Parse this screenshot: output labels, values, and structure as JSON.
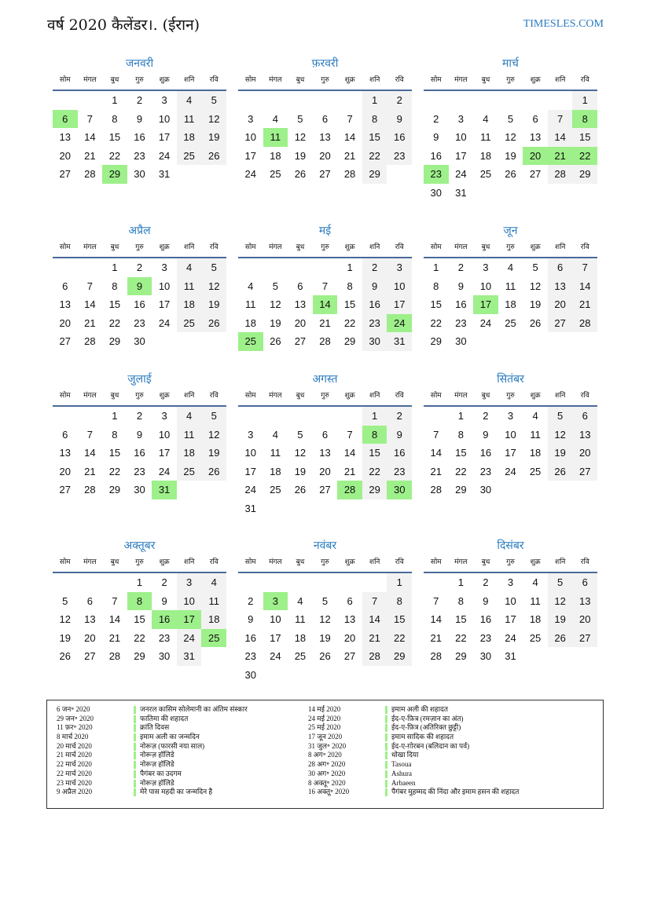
{
  "title": "वर्ष 2020 कैलेंडर।. (ईरान)",
  "site": "TIMESLES.COM",
  "year": 2020,
  "colors": {
    "accent": "#2a7bc0",
    "holiday": "#9ef08a",
    "weekend": "#f2f2f2"
  },
  "weekdays": [
    "सोम",
    "मंगल",
    "बुध",
    "गुरु",
    "शुक्र",
    "शनि",
    "रवि"
  ],
  "months": [
    {
      "name": "जनवरी",
      "highlights": [
        6,
        29
      ]
    },
    {
      "name": "फ़रवरी",
      "highlights": [
        11
      ]
    },
    {
      "name": "मार्च",
      "highlights": [
        8,
        20,
        21,
        22,
        23
      ]
    },
    {
      "name": "अप्रैल",
      "highlights": [
        9
      ]
    },
    {
      "name": "मई",
      "highlights": [
        14,
        24,
        25
      ]
    },
    {
      "name": "जून",
      "highlights": [
        17
      ]
    },
    {
      "name": "जुलाई",
      "highlights": [
        31
      ]
    },
    {
      "name": "अगस्त",
      "highlights": [
        8,
        28,
        30
      ]
    },
    {
      "name": "सितंबर",
      "highlights": []
    },
    {
      "name": "अक्तूबर",
      "highlights": [
        8,
        16,
        17,
        25
      ]
    },
    {
      "name": "नवंबर",
      "highlights": [
        3
      ]
    },
    {
      "name": "दिसंबर",
      "highlights": []
    }
  ],
  "holidays_left": [
    {
      "date": "6 जन॰ 2020",
      "name": "जनरल कासिम सोलेमानी का अंतिम संस्कार"
    },
    {
      "date": "29 जन॰ 2020",
      "name": "फातिमा की शहादत"
    },
    {
      "date": "11 फ़र॰ 2020",
      "name": "क्रांति दिवस"
    },
    {
      "date": "8 मार्च 2020",
      "name": "इमाम अली का जन्मदिन"
    },
    {
      "date": "20 मार्च 2020",
      "name": "नोरूज़ (फारसी नया साल)"
    },
    {
      "date": "21 मार्च 2020",
      "name": "नोरूज़ हॉलिडे"
    },
    {
      "date": "22 मार्च 2020",
      "name": "नोरूज़ हॉलिडे"
    },
    {
      "date": "22 मार्च 2020",
      "name": "पैगंबर का उदगम"
    },
    {
      "date": "23 मार्च 2020",
      "name": "नोरूज़ हॉलिडे"
    },
    {
      "date": "9 अप्रैल 2020",
      "name": "मेरे पास महदी का जन्मदिन है"
    }
  ],
  "holidays_right": [
    {
      "date": "14 मई 2020",
      "name": "इमाम अली की शहादत"
    },
    {
      "date": "24 मई 2020",
      "name": "ईद-ए-फ़ित्र (रमज़ान का अंत)"
    },
    {
      "date": "25 मई 2020",
      "name": "ईद-ए-फ़ित्र (अतिरिक्त छुट्टी)"
    },
    {
      "date": "17 जून 2020",
      "name": "इमाम सादिक की शहादत"
    },
    {
      "date": "31 जुल॰ 2020",
      "name": "ईद-ए-ग़ोरबन (बलिदान का पर्व)"
    },
    {
      "date": "8 अग॰ 2020",
      "name": "धोखा दिया"
    },
    {
      "date": "28 अग॰ 2020",
      "name": "Tasoua"
    },
    {
      "date": "30 अग॰ 2020",
      "name": "Ashura"
    },
    {
      "date": "8 अक्तू॰ 2020",
      "name": "Arbaeen"
    },
    {
      "date": "16 अक्तू॰ 2020",
      "name": "पैगंबर मुहम्मद की निंदा और इमाम हसन की शहादत"
    }
  ]
}
